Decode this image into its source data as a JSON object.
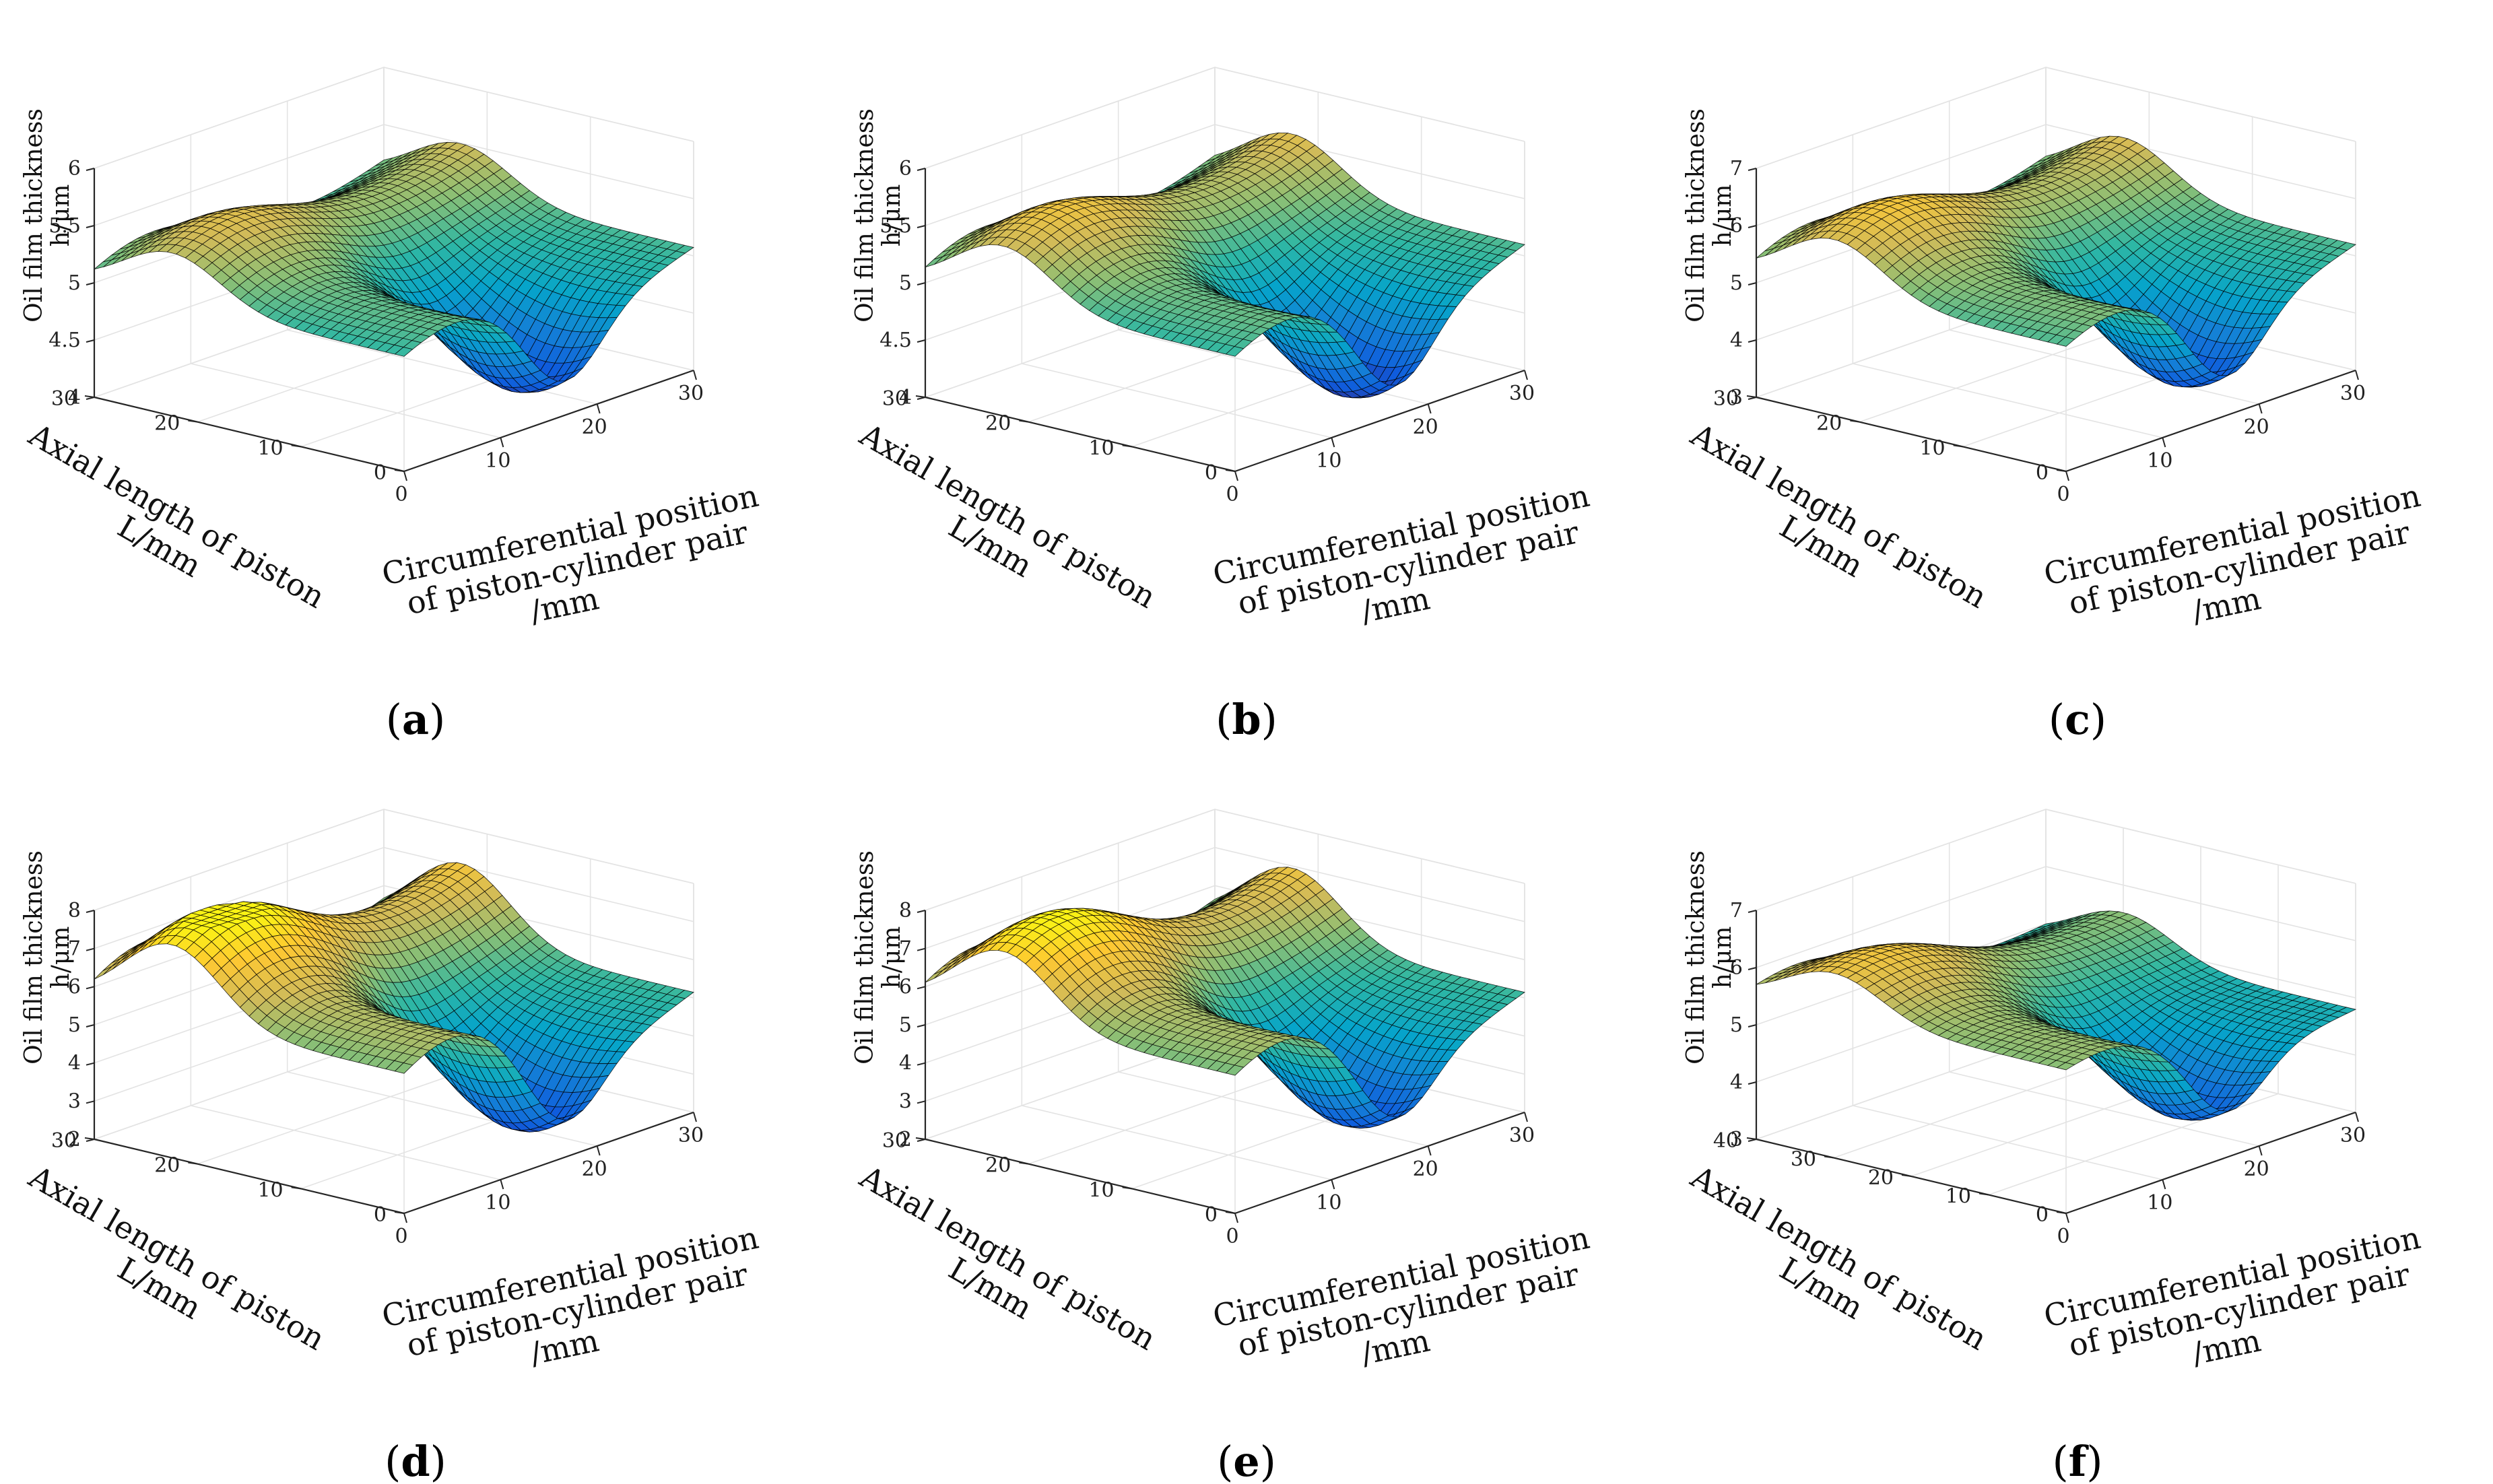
{
  "chart_data": [
    {
      "panel": "a",
      "type": "surface",
      "zlabel": [
        "Oil film thickness",
        "h/μm"
      ],
      "ylabel": [
        "Axial length of piston",
        "L/mm"
      ],
      "xlabel": [
        "Circumferential position",
        "of piston-cylinder pair",
        "/mm"
      ],
      "xlim": [
        0,
        30
      ],
      "ylim": [
        0,
        30
      ],
      "zlim": [
        4,
        6
      ],
      "xticks": [
        0,
        10,
        20,
        30
      ],
      "yticks": [
        0,
        10,
        20,
        30
      ],
      "zticks": [
        4,
        4.5,
        5,
        5.5,
        6
      ],
      "surface": {
        "base": 4.95,
        "ridge": 0.35,
        "trough": 0.85,
        "slope": 0.25
      }
    },
    {
      "panel": "b",
      "type": "surface",
      "zlabel": [
        "Oil film thickness",
        "h/μm"
      ],
      "ylabel": [
        "Axial length of piston",
        "L/mm"
      ],
      "xlabel": [
        "Circumferential position",
        "of piston-cylinder pair",
        "/mm"
      ],
      "xlim": [
        0,
        30
      ],
      "ylim": [
        0,
        30
      ],
      "zlim": [
        4,
        6
      ],
      "xticks": [
        0,
        10,
        20,
        30
      ],
      "yticks": [
        0,
        10,
        20,
        30
      ],
      "zticks": [
        4,
        4.5,
        5,
        5.5,
        6
      ],
      "surface": {
        "base": 4.95,
        "ridge": 0.4,
        "trough": 0.9,
        "slope": 0.3
      }
    },
    {
      "panel": "c",
      "type": "surface",
      "zlabel": [
        "Oil film thickness",
        "h/μm"
      ],
      "ylabel": [
        "Axial length of piston",
        "L/mm"
      ],
      "xlabel": [
        "Circumferential position",
        "of piston-cylinder pair",
        "/mm"
      ],
      "xlim": [
        0,
        30
      ],
      "ylim": [
        0,
        30
      ],
      "zlim": [
        3,
        7
      ],
      "xticks": [
        0,
        10,
        20,
        30
      ],
      "yticks": [
        0,
        10,
        20,
        30
      ],
      "zticks": [
        3,
        4,
        5,
        6,
        7
      ],
      "surface": {
        "base": 5.0,
        "ridge": 0.75,
        "trough": 1.7,
        "slope": 0.4
      }
    },
    {
      "panel": "d",
      "type": "surface",
      "zlabel": [
        "Oil film thickness",
        "h/μm"
      ],
      "ylabel": [
        "Axial length of piston",
        "L/mm"
      ],
      "xlabel": [
        "Circumferential position",
        "of piston-cylinder pair",
        "/mm"
      ],
      "xlim": [
        0,
        30
      ],
      "ylim": [
        0,
        30
      ],
      "zlim": [
        2,
        8
      ],
      "xticks": [
        0,
        10,
        20,
        30
      ],
      "yticks": [
        0,
        10,
        20,
        30
      ],
      "zticks": [
        2,
        3,
        4,
        5,
        6,
        7,
        8
      ],
      "surface": {
        "base": 5.0,
        "ridge": 1.6,
        "trough": 2.6,
        "slope": 0.3
      }
    },
    {
      "panel": "e",
      "type": "surface",
      "zlabel": [
        "Oil film thickness",
        "h/μm"
      ],
      "ylabel": [
        "Axial length of piston",
        "L/mm"
      ],
      "xlabel": [
        "Circumferential position",
        "of piston-cylinder pair",
        "/mm"
      ],
      "xlim": [
        0,
        30
      ],
      "ylim": [
        0,
        30
      ],
      "zlim": [
        2,
        8
      ],
      "xticks": [
        0,
        10,
        20,
        30
      ],
      "yticks": [
        0,
        10,
        20,
        30
      ],
      "zticks": [
        2,
        3,
        4,
        5,
        6,
        7,
        8
      ],
      "surface": {
        "base": 5.0,
        "ridge": 1.5,
        "trough": 2.5,
        "slope": 0.3
      }
    },
    {
      "panel": "f",
      "type": "surface",
      "zlabel": [
        "Oil film thickness",
        "h/μm"
      ],
      "ylabel": [
        "Axial length of piston",
        "L/mm"
      ],
      "xlabel": [
        "Circumferential position",
        "of piston-cylinder pair",
        "/mm"
      ],
      "xlim": [
        0,
        30
      ],
      "ylim": [
        0,
        40
      ],
      "zlim": [
        3,
        7
      ],
      "xticks": [
        0,
        10,
        20,
        30
      ],
      "yticks": [
        0,
        10,
        20,
        30,
        40
      ],
      "zticks": [
        3,
        4,
        5,
        6,
        7
      ],
      "surface": {
        "base": 5.0,
        "ridge": 0.6,
        "trough": 1.5,
        "slope": -0.4
      }
    }
  ],
  "panel_labels": [
    "(a)",
    "(b)",
    "(c)",
    "(d)",
    "(e)",
    "(f)"
  ],
  "colormap": [
    "#352a87",
    "#0f5cdd",
    "#1481d6",
    "#06a4ca",
    "#2eb7a4",
    "#87bf77",
    "#d1bb59",
    "#fec832",
    "#f9fb0e"
  ],
  "mesh_color": "#000000"
}
